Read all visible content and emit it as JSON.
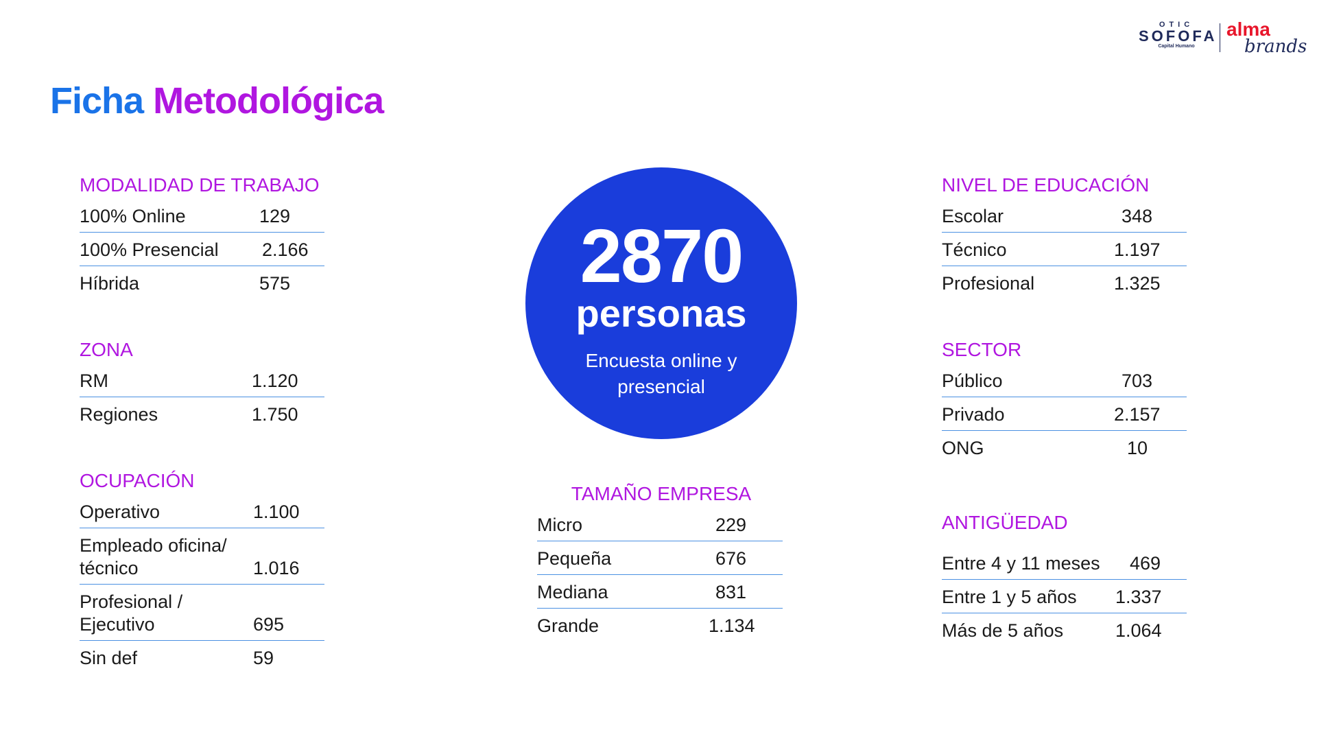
{
  "header": {
    "title_part1": "Ficha",
    "title_part2": "Metodológica",
    "logo_sofofa_top": "OTIC",
    "logo_sofofa_name": "SOFOFA",
    "logo_sofofa_sub": "Capital Humano",
    "logo_alma": "alma",
    "logo_brands": "brands"
  },
  "circle": {
    "number": "2870",
    "unit": "personas",
    "description": "Encuesta online y presencial"
  },
  "modalidad": {
    "title": "MODALIDAD DE TRABAJO",
    "rows": [
      {
        "label": "100% Online",
        "value": "129"
      },
      {
        "label": "100% Presencial",
        "value": "2.166"
      },
      {
        "label": "Híbrida",
        "value": "575"
      }
    ]
  },
  "zona": {
    "title": "ZONA",
    "rows": [
      {
        "label": "RM",
        "value": "1.120"
      },
      {
        "label": "Regiones",
        "value": "1.750"
      }
    ]
  },
  "ocupacion": {
    "title": "OCUPACIÓN",
    "rows": [
      {
        "label": "Operativo",
        "value": "1.100"
      },
      {
        "label": "Empleado oficina/ técnico",
        "value": "1.016"
      },
      {
        "label": "Profesional / Ejecutivo",
        "value": "695"
      },
      {
        "label": "Sin def",
        "value": "59"
      }
    ]
  },
  "tamano": {
    "title": "TAMAÑO EMPRESA",
    "rows": [
      {
        "label": "Micro",
        "value": "229"
      },
      {
        "label": "Pequeña",
        "value": "676"
      },
      {
        "label": "Mediana",
        "value": "831"
      },
      {
        "label": "Grande",
        "value": "1.134"
      }
    ]
  },
  "educacion": {
    "title": "NIVEL DE EDUCACIÓN",
    "rows": [
      {
        "label": "Escolar",
        "value": "348"
      },
      {
        "label": "Técnico",
        "value": "1.197"
      },
      {
        "label": "Profesional",
        "value": "1.325"
      }
    ]
  },
  "sector": {
    "title": "SECTOR",
    "rows": [
      {
        "label": "Público",
        "value": "703"
      },
      {
        "label": "Privado",
        "value": "2.157"
      },
      {
        "label": "ONG",
        "value": "10"
      }
    ]
  },
  "antiguedad": {
    "title": "ANTIGÜEDAD",
    "rows": [
      {
        "label": "Entre 4 y 11 meses",
        "value": "469"
      },
      {
        "label": "Entre 1 y 5 años",
        "value": "1.337"
      },
      {
        "label": "Más de 5 años",
        "value": "1.064"
      }
    ]
  }
}
